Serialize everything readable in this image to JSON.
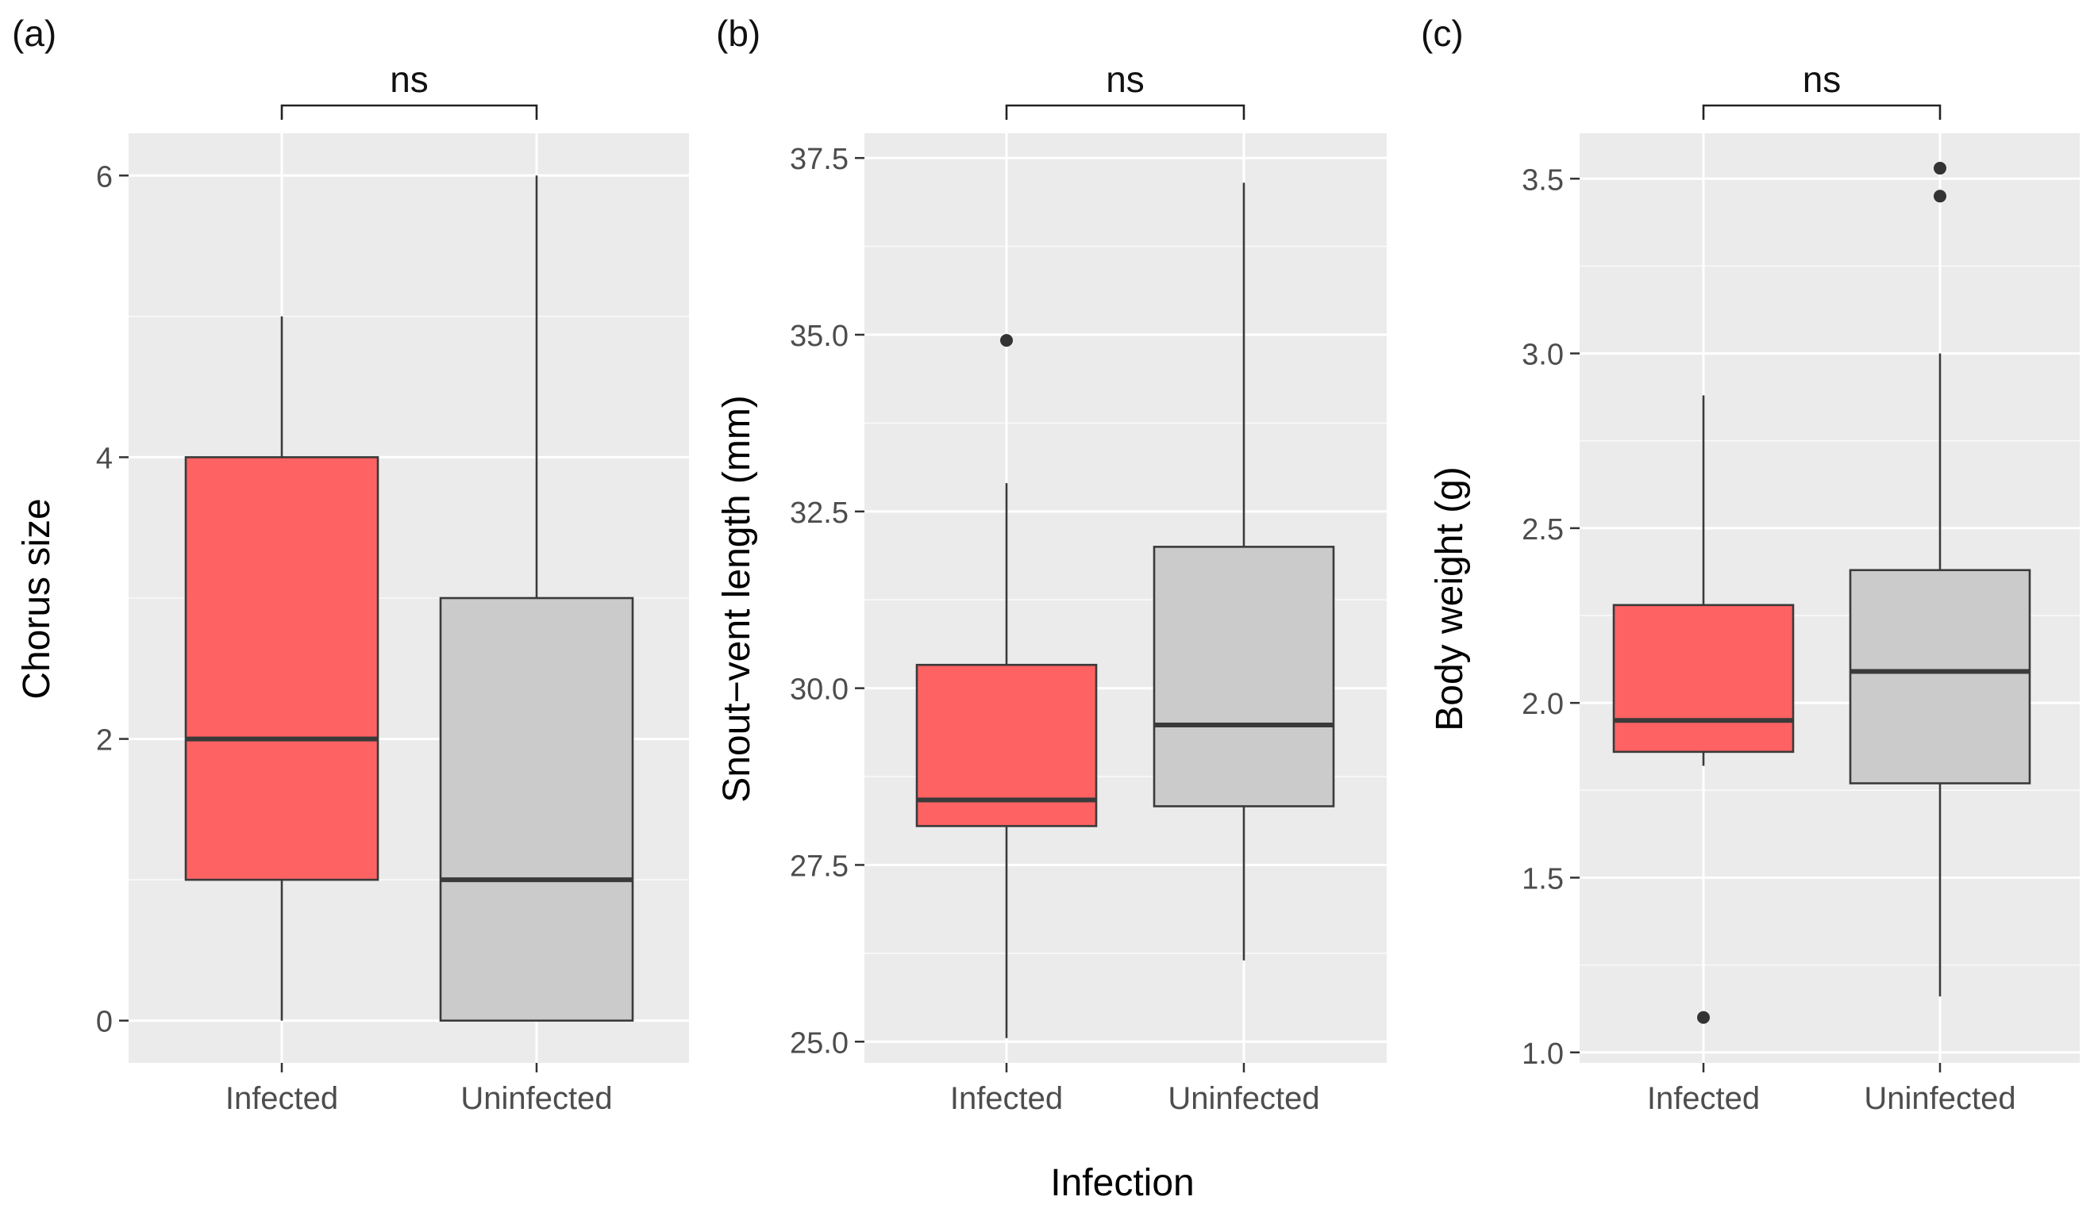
{
  "figure": {
    "shared_xlabel": "Infection"
  },
  "colors": {
    "infected": "#fe6262",
    "uninfected": "#cbcbcb",
    "panel_bg": "#ebebeb",
    "grid": "#ffffff",
    "line": "#3a3a3a",
    "tick_text": "#4d4d4d"
  },
  "chart_data": [
    {
      "type": "boxplot",
      "panel_label": "(a)",
      "ylabel": "Chorus size",
      "xlabel": "Infection",
      "categories": [
        "Infected",
        "Uninfected"
      ],
      "ylim": [
        -0.3,
        6.3
      ],
      "yticks": [
        0,
        2,
        4,
        6
      ],
      "ytick_labels": [
        "0",
        "2",
        "4",
        "6"
      ],
      "minor_yticks": [
        1,
        3,
        5
      ],
      "significance": {
        "label": "ns",
        "between": [
          "Infected",
          "Uninfected"
        ]
      },
      "boxes": [
        {
          "name": "Infected",
          "whisker_low": 0,
          "q1": 1,
          "median": 2,
          "q3": 4,
          "whisker_high": 5,
          "outliers": []
        },
        {
          "name": "Uninfected",
          "whisker_low": 0,
          "q1": 0,
          "median": 1,
          "q3": 3,
          "whisker_high": 6,
          "outliers": []
        }
      ]
    },
    {
      "type": "boxplot",
      "panel_label": "(b)",
      "ylabel": "Snout−vent length (mm)",
      "xlabel": "Infection",
      "categories": [
        "Infected",
        "Uninfected"
      ],
      "ylim": [
        24.7,
        37.85
      ],
      "yticks": [
        25.0,
        27.5,
        30.0,
        32.5,
        35.0,
        37.5
      ],
      "ytick_labels": [
        "25.0",
        "27.5",
        "30.0",
        "32.5",
        "35.0",
        "37.5"
      ],
      "minor_yticks": [
        26.25,
        28.75,
        31.25,
        33.75,
        36.25
      ],
      "significance": {
        "label": "ns",
        "between": [
          "Infected",
          "Uninfected"
        ]
      },
      "boxes": [
        {
          "name": "Infected",
          "whisker_low": 25.05,
          "q1": 28.05,
          "median": 28.42,
          "q3": 30.33,
          "whisker_high": 32.9,
          "outliers": [
            34.92
          ]
        },
        {
          "name": "Uninfected",
          "whisker_low": 26.15,
          "q1": 28.33,
          "median": 29.48,
          "q3": 32.0,
          "whisker_high": 37.15,
          "outliers": []
        }
      ]
    },
    {
      "type": "boxplot",
      "panel_label": "(c)",
      "ylabel": "Body weight (g)",
      "xlabel": "Infection",
      "categories": [
        "Infected",
        "Uninfected"
      ],
      "ylim": [
        0.97,
        3.63
      ],
      "yticks": [
        1.0,
        1.5,
        2.0,
        2.5,
        3.0,
        3.5
      ],
      "ytick_labels": [
        "1.0",
        "1.5",
        "2.0",
        "2.5",
        "3.0",
        "3.5"
      ],
      "minor_yticks": [
        1.25,
        1.75,
        2.25,
        2.75,
        3.25
      ],
      "significance": {
        "label": "ns",
        "between": [
          "Infected",
          "Uninfected"
        ]
      },
      "boxes": [
        {
          "name": "Infected",
          "whisker_low": 1.82,
          "q1": 1.86,
          "median": 1.95,
          "q3": 2.28,
          "whisker_high": 2.88,
          "outliers": [
            1.1
          ]
        },
        {
          "name": "Uninfected",
          "whisker_low": 1.16,
          "q1": 1.77,
          "median": 2.09,
          "q3": 2.38,
          "whisker_high": 3.0,
          "outliers": [
            3.45,
            3.53
          ]
        }
      ]
    }
  ]
}
